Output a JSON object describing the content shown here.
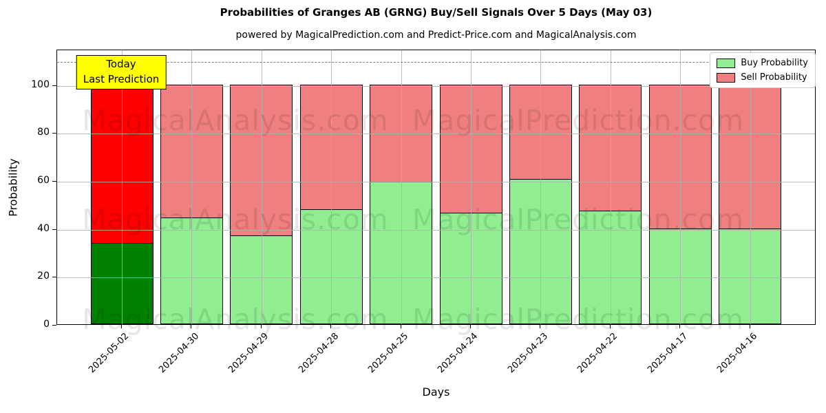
{
  "figure": {
    "title": "Probabilities of Granges AB (GRNG) Buy/Sell Signals Over 5 Days (May 03)",
    "subtitle": "powered by MagicalPrediction.com and Predict-Price.com and MagicalAnalysis.com"
  },
  "annotation": {
    "line1": "Today",
    "line2": "Last Prediction"
  },
  "legend": {
    "items": [
      {
        "label": "Buy Probability",
        "color": "#90ee90"
      },
      {
        "label": "Sell Probability",
        "color": "#f08080"
      }
    ]
  },
  "watermarks": {
    "left": "MagicalAnalysis.com",
    "right": "MagicalPrediction.com"
  },
  "chart_data": {
    "type": "bar",
    "stacked": true,
    "title": "Probabilities of Granges AB (GRNG) Buy/Sell Signals Over 5 Days (May 03)",
    "xlabel": "Days",
    "ylabel": "Probability",
    "ylim": [
      0,
      114.8
    ],
    "yticks": [
      0,
      20,
      40,
      60,
      80,
      100
    ],
    "grid": true,
    "legend_position": "upper right",
    "dashed_reference_line_y": 110,
    "categories": [
      "2025-05-02",
      "2025-04-30",
      "2025-04-29",
      "2025-04-28",
      "2025-04-25",
      "2025-04-24",
      "2025-04-23",
      "2025-04-22",
      "2025-04-17",
      "2025-04-16"
    ],
    "series": [
      {
        "name": "Buy Probability",
        "values": [
          34,
          44.5,
          37,
          48,
          59.5,
          46.5,
          60.5,
          47.5,
          40,
          40
        ]
      },
      {
        "name": "Sell Probability",
        "values": [
          66,
          55.5,
          63,
          52,
          40.5,
          53.5,
          39.5,
          52.5,
          60,
          60
        ]
      }
    ],
    "highlighted_bar": {
      "index": 0,
      "label": "Today / Last Prediction",
      "buy_color": "#008000",
      "sell_color": "#ff0000"
    },
    "default_colors": {
      "buy": "#90ee90",
      "sell": "#f08080"
    }
  }
}
